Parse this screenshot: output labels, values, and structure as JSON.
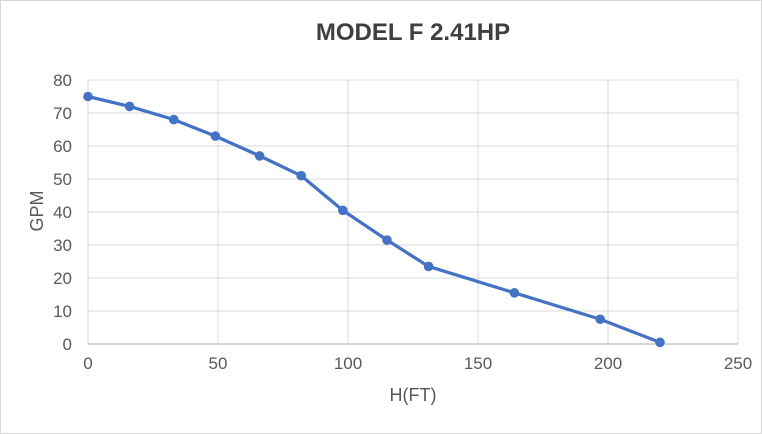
{
  "chart_data": {
    "type": "line",
    "title": "MODEL F 2.41HP",
    "xlabel": "H(FT)",
    "ylabel": "GPM",
    "x": [
      0,
      16,
      33,
      49,
      66,
      82,
      98,
      115,
      131,
      164,
      197,
      220
    ],
    "y": [
      75,
      72,
      68,
      63,
      57,
      51,
      40.5,
      31.5,
      23.5,
      15.5,
      7.5,
      0.5
    ],
    "xlim": [
      0,
      250
    ],
    "ylim": [
      0,
      80
    ],
    "x_ticks": [
      0,
      50,
      100,
      150,
      200,
      250
    ],
    "y_ticks": [
      0,
      10,
      20,
      30,
      40,
      50,
      60,
      70,
      80
    ],
    "grid": true,
    "legend": false,
    "colors": {
      "series": "#4472C4",
      "gridline": "#D9D9D9",
      "axis_line": "#BFBFBF",
      "tick_label": "#595959",
      "title": "#3F3F3F",
      "chart_border": "#D6D6D6",
      "background": "#FFFFFF"
    }
  }
}
